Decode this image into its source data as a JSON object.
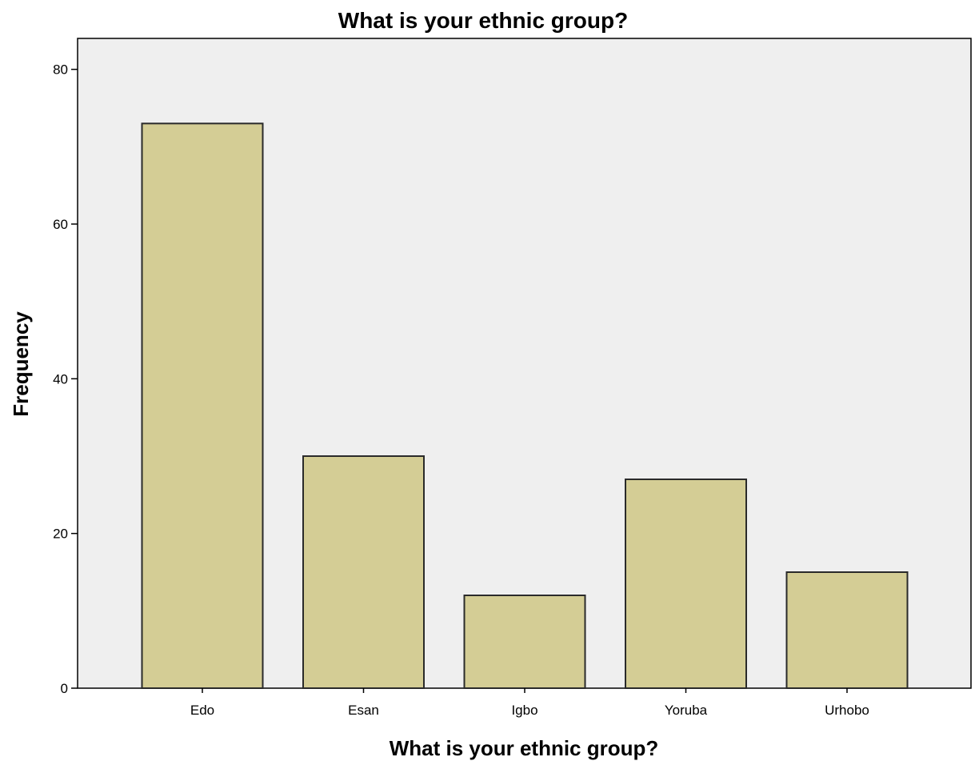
{
  "chart_data": {
    "type": "bar",
    "title": "What is your ethnic group?",
    "xlabel": "What is your ethnic group?",
    "ylabel": "Frequency",
    "categories": [
      "Edo",
      "Esan",
      "Igbo",
      "Yoruba",
      "Urhobo"
    ],
    "values": [
      73,
      30,
      12,
      27,
      15
    ],
    "ylim": [
      0,
      84
    ],
    "yticks": [
      0,
      20,
      40,
      60,
      80
    ],
    "grid": false,
    "legend": "none",
    "colors": {
      "bar_fill": "#d4cd95",
      "bar_stroke": "#2a2a2a",
      "plot_background": "#efefef",
      "axis": "#000000"
    }
  }
}
